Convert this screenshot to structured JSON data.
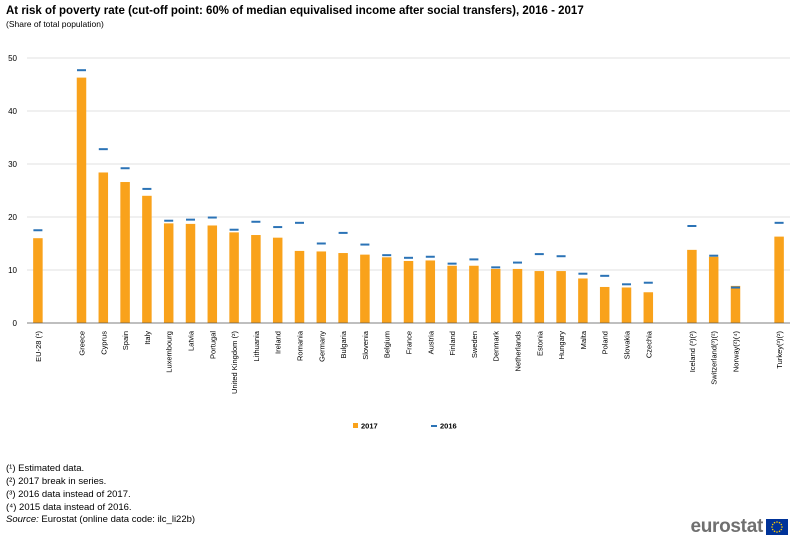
{
  "header": {
    "title": "At risk of poverty rate (cut-off point: 60% of median equivalised income after social transfers), 2016 - 2017",
    "subtitle": "(Share of total population)"
  },
  "chart_data": {
    "type": "bar",
    "categories": [
      "EU-28 (¹)",
      "",
      "Greece",
      "Cyprus",
      "Spain",
      "Italy",
      "Luxembourg",
      "Latvia",
      "Portugal",
      "United Kingdom (²)",
      "Lithuania",
      "Ireland",
      "Romania",
      "Germany",
      "Bulgaria",
      "Slovenia",
      "Belgium",
      "France",
      "Austria",
      "Finland",
      "Sweden",
      "Denmark",
      "Netherlands",
      "Estonia",
      "Hungary",
      "Malta",
      "Poland",
      "Slovakia",
      "Czechia",
      "",
      "Iceland (³)(²)",
      "Switzerland(³)(²)",
      "Norway(²)(⁴)",
      "",
      "Turkey(³)(²)"
    ],
    "series": [
      {
        "name": "2017",
        "mark": "bar",
        "color": "#F9A21B",
        "values": [
          16.0,
          null,
          46.3,
          28.4,
          26.6,
          24.0,
          18.8,
          18.7,
          18.4,
          17.1,
          16.6,
          16.1,
          13.6,
          13.5,
          13.2,
          12.9,
          12.4,
          11.7,
          11.8,
          10.8,
          10.8,
          10.2,
          10.2,
          9.8,
          9.8,
          8.4,
          6.8,
          6.7,
          5.8,
          null,
          13.8,
          12.5,
          7.0,
          null,
          16.3
        ]
      },
      {
        "name": "2016",
        "mark": "dash",
        "color": "#2B73B6",
        "values": [
          17.5,
          null,
          47.7,
          32.8,
          29.2,
          25.3,
          19.3,
          19.5,
          19.9,
          17.6,
          19.1,
          18.1,
          18.9,
          15.0,
          17.0,
          14.8,
          12.8,
          12.3,
          12.5,
          11.2,
          12.0,
          10.5,
          11.4,
          13.0,
          12.6,
          9.3,
          8.9,
          7.3,
          7.6,
          null,
          18.3,
          12.7,
          6.7,
          null,
          18.9
        ]
      }
    ],
    "ylim": [
      0,
      50
    ],
    "yticks": [
      0,
      10,
      20,
      30,
      40,
      50
    ],
    "grid": true,
    "legend": "bottom-center",
    "xlabel": "",
    "ylabel": ""
  },
  "footnotes": [
    "(¹) Estimated data.",
    "(²) 2017 break in series.",
    "(³) 2016 data instead of 2017.",
    "(⁴) 2015 data instead of 2016."
  ],
  "source": {
    "label": "Source:",
    "text": " Eurostat (online data code: ilc_li22b)"
  },
  "logo": {
    "text": "eurostat",
    "flag_color": "#003399",
    "star_color": "#FFCC00"
  }
}
